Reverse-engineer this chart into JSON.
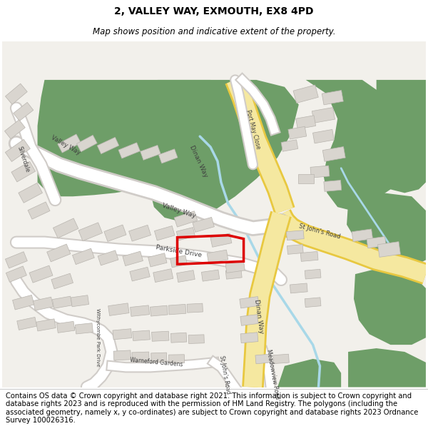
{
  "title": "2, VALLEY WAY, EXMOUTH, EX8 4PD",
  "subtitle": "Map shows position and indicative extent of the property.",
  "copyright_text": "Contains OS data © Crown copyright and database right 2021. This information is subject to Crown copyright and database rights 2023 and is reproduced with the permission of HM Land Registry. The polygons (including the associated geometry, namely x, y co-ordinates) are subject to Crown copyright and database rights 2023 Ordnance Survey 100026316.",
  "title_fontsize": 10,
  "subtitle_fontsize": 8.5,
  "copyright_fontsize": 7.2,
  "bg_color": "#f2f0eb",
  "green_color": "#6e9e68",
  "building_color": "#d9d5cf",
  "building_outline": "#b8b4ae",
  "water_color": "#a8d8e8",
  "road_yellow": "#f5e8a0",
  "road_yellow_edge": "#e8c840",
  "road_white": "#ffffff",
  "road_white_edge": "#d0ccc8"
}
